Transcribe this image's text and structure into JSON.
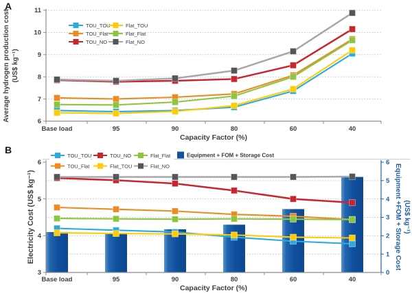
{
  "figure": {
    "panel_a_label": "A",
    "panel_b_label": "B"
  },
  "chart_data": [
    {
      "panel": "A",
      "type": "line",
      "categories": [
        "Base load",
        "95",
        "90",
        "80",
        "60",
        "40"
      ],
      "xlabel": "Capacity Factor (%)",
      "ylabel": "Average hydrogen production cost (US$ kg⁻¹)",
      "ylabel_lines": [
        "Average hydrogen production cost",
        "(US$ kg⁻¹)"
      ],
      "ylim": [
        6,
        11
      ],
      "yticks": [
        6,
        7,
        8,
        9,
        10,
        11
      ],
      "grid": "horizontal dotted",
      "legend_position": "inside top-left",
      "legend_columns": [
        [
          "TOU_TOU",
          "TOU_Flat",
          "TOU_NO"
        ],
        [
          "Flat_TOU",
          "Flat_Flat",
          "Flat_NO"
        ]
      ],
      "series": [
        {
          "name": "TOU_TOU",
          "color": "#29abe2",
          "values": [
            6.48,
            6.43,
            6.48,
            6.63,
            7.36,
            9.05
          ]
        },
        {
          "name": "TOU_Flat",
          "color": "#ef8922",
          "values": [
            7.05,
            7.0,
            7.08,
            7.23,
            8.07,
            9.7
          ]
        },
        {
          "name": "TOU_NO",
          "color": "#c9252c",
          "values": [
            7.85,
            7.78,
            7.82,
            7.9,
            8.52,
            10.15
          ]
        },
        {
          "name": "Flat_TOU",
          "color": "#ffcb05",
          "values": [
            6.38,
            6.35,
            6.44,
            6.7,
            7.45,
            9.2
          ]
        },
        {
          "name": "Flat_Flat",
          "color": "#8cc63f",
          "values": [
            6.75,
            6.73,
            6.86,
            7.13,
            8.0,
            9.65
          ]
        },
        {
          "name": "Flat_NO",
          "color": "#54565a",
          "line_color": "#a6a8ab",
          "values": [
            7.88,
            7.82,
            7.93,
            8.28,
            9.15,
            10.88
          ]
        }
      ]
    },
    {
      "panel": "B",
      "type": "line+bar",
      "categories": [
        "Base load",
        "95",
        "90",
        "80",
        "60",
        "40"
      ],
      "xlabel": "Capacity Factor (%)",
      "ylabel_left": "Electricity Cost (US$ kg⁻¹)",
      "ylim_left": [
        3,
        6
      ],
      "yticks_left": [
        3,
        4,
        5,
        6
      ],
      "ylabel_right": "Equipment +FOM + Storage Cost (US$ kg⁻¹)",
      "ylabel_right_lines": [
        "Equipment +FOM + Storage Cost",
        "(US$ kg⁻¹)"
      ],
      "ylim_right": [
        0,
        6
      ],
      "yticks_right": [
        0,
        1,
        2,
        3,
        4,
        5,
        6
      ],
      "grid": "horizontal dotted at right-axis integers 1-5",
      "legend_rows": [
        [
          "TOU_TOU",
          "TOU_NO",
          "Flat_Flat"
        ],
        [
          "TOU_Flat",
          "Flat_TOU",
          "Flat_NO"
        ]
      ],
      "series": [
        {
          "name": "TOU_TOU",
          "color": "#29abe2",
          "values": [
            4.2,
            4.15,
            4.1,
            3.96,
            3.85,
            3.78
          ]
        },
        {
          "name": "TOU_Flat",
          "color": "#ef8922",
          "values": [
            4.77,
            4.72,
            4.67,
            4.58,
            4.53,
            4.44
          ]
        },
        {
          "name": "TOU_NO",
          "color": "#c9252c",
          "values": [
            5.57,
            5.51,
            5.42,
            5.23,
            5.0,
            4.9
          ]
        },
        {
          "name": "Flat_TOU",
          "color": "#ffcb05",
          "values": [
            4.08,
            4.06,
            4.05,
            4.02,
            3.96,
            3.94
          ]
        },
        {
          "name": "Flat_Flat",
          "color": "#8cc63f",
          "values": [
            4.47,
            4.46,
            4.45,
            4.46,
            4.45,
            4.44
          ]
        },
        {
          "name": "Flat_NO",
          "color": "#54565a",
          "line_color": "#a6a8ab",
          "values": [
            5.6,
            5.6,
            5.6,
            5.6,
            5.6,
            5.61
          ]
        }
      ],
      "bar_series": {
        "name": "Equipment + FOM + Storage Cost",
        "axis": "right",
        "color": "#11529f",
        "values": [
          2.2,
          2.15,
          2.35,
          2.6,
          3.45,
          5.2
        ]
      }
    }
  ]
}
